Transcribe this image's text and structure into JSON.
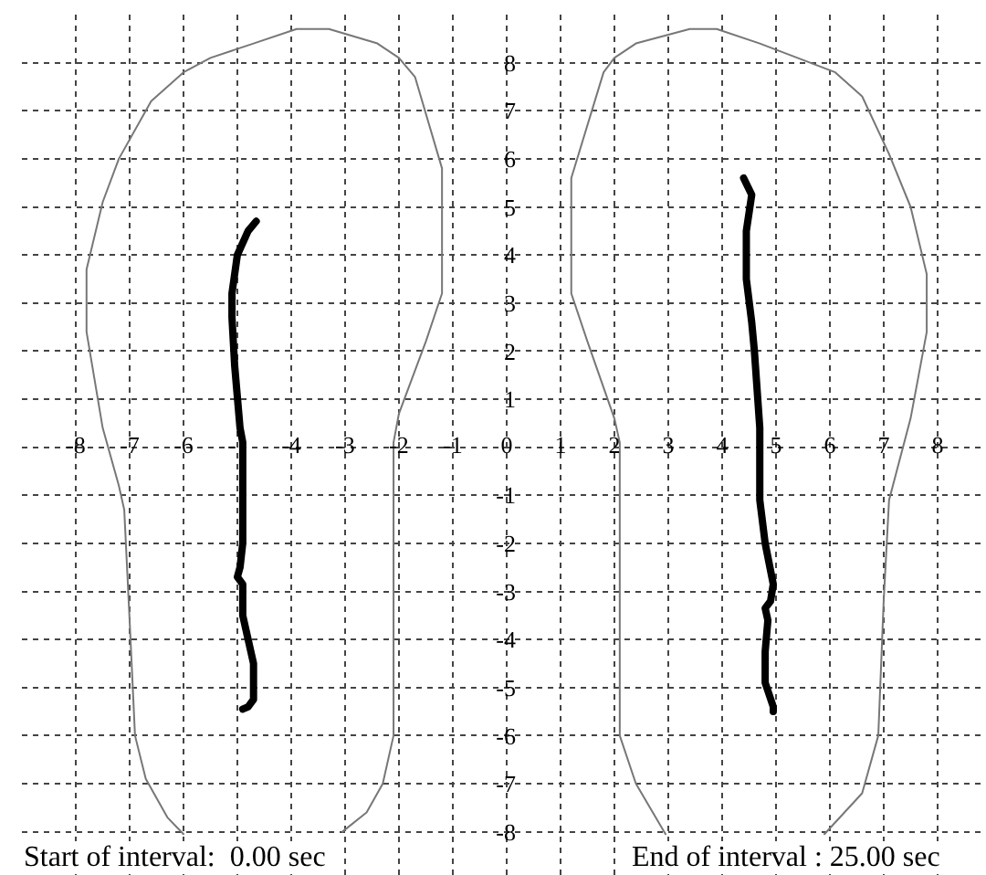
{
  "chart_data": {
    "type": "line",
    "xlim": [
      -9,
      8.9
    ],
    "ylim": [
      -8.9,
      9
    ],
    "xticks": [
      -8,
      -7,
      -6,
      {
        "value": -5,
        "label": "-"
      },
      -4,
      -3,
      -2,
      -1,
      0,
      1,
      2,
      3,
      4,
      5,
      6,
      7,
      8
    ],
    "yticks": [
      -8,
      -7,
      -6,
      -5,
      -4,
      -3,
      -2,
      -1,
      {
        "value": 0,
        "label": null
      },
      1,
      2,
      3,
      4,
      5,
      6,
      7,
      8
    ],
    "grid": true,
    "annotations": [
      "Start of interval:  0.00 sec",
      "End of interval : 25.00 sec"
    ],
    "series": [
      {
        "color": "#777777",
        "x": [
          -6.0,
          -6.3,
          -6.7,
          -6.9,
          -7.0,
          -7.1,
          -7.2,
          -7.5,
          -7.8,
          -7.8,
          -7.5,
          -7.2,
          -6.6,
          -6.0,
          -5.5,
          -4.7,
          -3.9,
          -3.3,
          -2.4,
          -2.0,
          -1.7,
          -1.2,
          -1.2,
          -1.5,
          -2.0,
          -2.1,
          -2.1,
          -2.3,
          -2.6,
          -3.05
        ],
        "values": [
          -8.05,
          -7.7,
          -6.9,
          -6.0,
          -3.6,
          -1.3,
          -0.8,
          0.4,
          2.4,
          3.7,
          5.1,
          6.0,
          7.2,
          7.8,
          8.1,
          8.4,
          8.7,
          8.7,
          8.4,
          8.1,
          7.7,
          5.8,
          3.2,
          2.2,
          0.7,
          0.1,
          -6.0,
          -7.0,
          -7.6,
          -8.0
        ]
      },
      {
        "color": "#777777",
        "x": [
          2.95,
          2.4,
          2.1,
          2.1,
          2.0,
          1.5,
          1.2,
          1.2,
          1.8,
          2.0,
          2.4,
          3.4,
          3.9,
          4.7,
          5.4,
          6.1,
          6.6,
          7.1,
          7.5,
          7.8,
          7.8,
          7.5,
          7.1,
          7.0,
          6.9,
          6.6,
          5.9
        ],
        "values": [
          -8.05,
          -7.0,
          -6.0,
          0.1,
          0.6,
          2.2,
          3.2,
          5.6,
          7.8,
          8.1,
          8.4,
          8.7,
          8.7,
          8.4,
          8.1,
          7.8,
          7.3,
          6.1,
          5.0,
          3.6,
          2.4,
          0.6,
          -1.1,
          -3.2,
          -6.0,
          -7.2,
          -8.05
        ]
      },
      {
        "color": "#000000",
        "x": [
          -4.65,
          -4.8,
          -5.0,
          -5.1,
          -5.1,
          -5.05,
          -4.95,
          -4.9,
          -4.9,
          -4.9,
          -4.95,
          -5.0,
          -4.9,
          -4.9,
          -4.8,
          -4.7,
          -4.7,
          -4.8,
          -4.9
        ],
        "values": [
          4.7,
          4.5,
          4.0,
          3.2,
          2.7,
          1.7,
          0.4,
          0.1,
          -0.7,
          -2.0,
          -2.5,
          -2.7,
          -2.85,
          -3.5,
          -4.0,
          -4.5,
          -5.25,
          -5.4,
          -5.45
        ]
      },
      {
        "color": "#000000",
        "x": [
          4.4,
          4.55,
          4.45,
          4.45,
          4.55,
          4.6,
          4.65,
          4.7,
          4.7,
          4.7,
          4.8,
          4.95,
          4.9,
          4.8,
          4.85,
          4.8,
          4.8,
          4.95,
          4.95
        ],
        "values": [
          5.6,
          5.25,
          4.5,
          3.5,
          2.6,
          2.0,
          1.2,
          0.4,
          0.05,
          -1.1,
          -2.0,
          -2.85,
          -3.2,
          -3.35,
          -3.6,
          -4.25,
          -4.9,
          -5.4,
          -5.5
        ]
      }
    ]
  }
}
